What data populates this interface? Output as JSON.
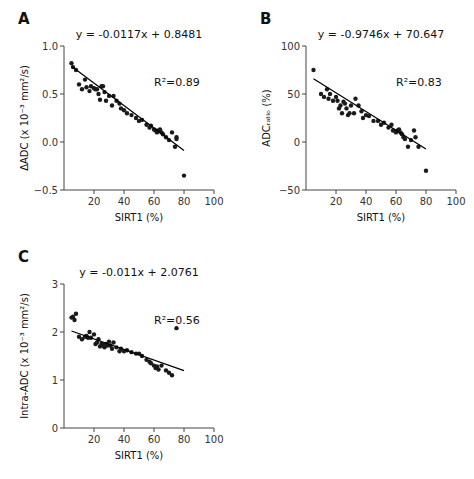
{
  "chart_data": [
    {
      "type": "scatter",
      "title": "y = -0.0117x + 0.8481",
      "x_label": "SIRT1 (%)",
      "y_label": "ΔADC (x 10⁻³ mm²/s)",
      "annotations": [
        "A",
        "R²=0.89"
      ],
      "xlim": [
        0,
        100
      ],
      "ylim": [
        -0.5,
        1.0
      ],
      "xticks": [
        20,
        40,
        60,
        80,
        100
      ],
      "yticks": [
        {
          "value": -0.5,
          "label": "−0.5"
        },
        {
          "value": 0.0,
          "label": "0.0"
        },
        {
          "value": 0.5,
          "label": "0.5"
        },
        {
          "value": 1.0,
          "label": "1.0"
        }
      ],
      "grid": false,
      "series": [
        {
          "type": "scatter",
          "color": "#1a1a1a",
          "x": [
            5,
            6,
            8,
            10,
            12,
            14,
            15,
            17,
            18,
            20,
            21,
            22,
            23,
            24,
            25,
            26,
            27,
            28,
            30,
            32,
            33,
            35,
            37,
            38,
            40,
            42,
            45,
            48,
            50,
            52,
            55,
            57,
            58,
            60,
            61,
            62,
            63,
            64,
            65,
            66,
            68,
            70,
            72,
            74,
            75,
            75,
            80
          ],
          "values": [
            0.82,
            0.78,
            0.75,
            0.6,
            0.55,
            0.65,
            0.57,
            0.53,
            0.58,
            0.56,
            0.55,
            0.55,
            0.5,
            0.44,
            0.58,
            0.58,
            0.52,
            0.43,
            0.48,
            0.38,
            0.48,
            0.43,
            0.4,
            0.35,
            0.33,
            0.3,
            0.28,
            0.25,
            0.22,
            0.23,
            0.18,
            0.15,
            0.17,
            0.13,
            0.12,
            0.1,
            0.12,
            0.13,
            0.1,
            0.08,
            0.05,
            0.02,
            0.1,
            -0.05,
            0.03,
            0.05,
            -0.35
          ]
        },
        {
          "type": "line",
          "color": "#000000",
          "x": [
            5,
            80
          ],
          "values": [
            0.7896,
            -0.0879
          ]
        }
      ]
    },
    {
      "type": "scatter",
      "title": "y = -0.9746x + 70.647",
      "x_label": "SIRT1 (%)",
      "y_label": "ADCᵣₐₜᵢₒ (%)",
      "annotations": [
        "B",
        "R²=0.83"
      ],
      "xlim": [
        0,
        100
      ],
      "ylim": [
        -50,
        100
      ],
      "xticks": [
        20,
        40,
        60,
        80,
        100
      ],
      "yticks": [
        {
          "value": -50,
          "label": "−50"
        },
        0,
        50,
        100
      ],
      "grid": false,
      "series": [
        {
          "type": "scatter",
          "color": "#1a1a1a",
          "x": [
            5,
            10,
            12,
            14,
            15,
            16,
            18,
            20,
            21,
            22,
            23,
            24,
            25,
            26,
            27,
            28,
            29,
            30,
            32,
            33,
            35,
            37,
            38,
            40,
            42,
            45,
            48,
            50,
            52,
            55,
            57,
            58,
            60,
            61,
            62,
            63,
            64,
            65,
            66,
            68,
            70,
            72,
            73,
            75,
            80
          ],
          "values": [
            75,
            50,
            47,
            55,
            45,
            50,
            43,
            47,
            43,
            35,
            38,
            30,
            42,
            40,
            35,
            28,
            30,
            38,
            30,
            45,
            38,
            32,
            25,
            28,
            27,
            22,
            22,
            18,
            20,
            15,
            18,
            12,
            10,
            12,
            13,
            10,
            8,
            5,
            3,
            -5,
            2,
            12,
            5,
            -5,
            -30
          ]
        },
        {
          "type": "line",
          "color": "#000000",
          "x": [
            5,
            80
          ],
          "values": [
            65.774,
            -7.321
          ]
        }
      ]
    },
    {
      "type": "scatter",
      "title": "y = -0.011x + 2.0761",
      "x_label": "SIRT1 (%)",
      "y_label": "Intra-ADC (x 10⁻³ mm²/s)",
      "annotations": [
        "C",
        "R²=0.56"
      ],
      "xlim": [
        0,
        100
      ],
      "ylim": [
        0,
        3
      ],
      "xticks": [
        20,
        40,
        60,
        80,
        100
      ],
      "yticks": [
        0,
        1,
        2,
        3
      ],
      "grid": false,
      "series": [
        {
          "type": "scatter",
          "color": "#1a1a1a",
          "x": [
            5,
            6,
            7,
            8,
            10,
            12,
            14,
            15,
            16,
            17,
            18,
            20,
            21,
            22,
            23,
            24,
            25,
            26,
            27,
            28,
            29,
            30,
            31,
            32,
            33,
            35,
            37,
            38,
            40,
            42,
            45,
            48,
            50,
            52,
            55,
            57,
            58,
            60,
            61,
            62,
            63,
            65,
            68,
            70,
            72,
            75
          ],
          "values": [
            2.3,
            2.32,
            2.25,
            2.38,
            1.9,
            1.85,
            1.9,
            1.92,
            1.88,
            2.0,
            1.88,
            1.95,
            1.75,
            1.78,
            1.85,
            1.7,
            1.75,
            1.73,
            1.68,
            1.75,
            1.72,
            1.8,
            1.72,
            1.65,
            1.78,
            1.68,
            1.6,
            1.65,
            1.6,
            1.62,
            1.58,
            1.55,
            1.55,
            1.5,
            1.42,
            1.38,
            1.35,
            1.3,
            1.25,
            1.28,
            1.22,
            1.3,
            1.2,
            1.15,
            1.1,
            2.08
          ]
        },
        {
          "type": "line",
          "color": "#000000",
          "x": [
            5,
            80
          ],
          "values": [
            2.0211,
            1.1961
          ]
        }
      ]
    }
  ]
}
